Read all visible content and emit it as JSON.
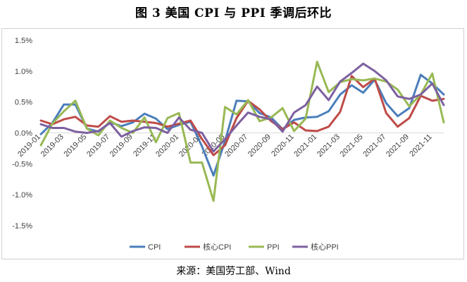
{
  "figure": {
    "title": "图 3 美国 CPI 与 PPI 季调后环比",
    "source": "来源：美国劳工部、Wind"
  },
  "chart_data": {
    "type": "line",
    "title": "图 3 美国 CPI 与 PPI 季调后环比",
    "xlabel": "",
    "ylabel": "",
    "ylim": [
      -1.5,
      1.5
    ],
    "y_ticks": [
      "1.5%",
      "1.0%",
      "0.5%",
      "0.0%",
      "-0.5%",
      "-1.0%",
      "-1.5%"
    ],
    "y_tick_values": [
      1.5,
      1.0,
      0.5,
      0.0,
      -0.5,
      -1.0,
      -1.5
    ],
    "grid": false,
    "legend": "bottom",
    "x": [
      "2019-01",
      "2019-02",
      "2019-03",
      "2019-04",
      "2019-05",
      "2019-06",
      "2019-07",
      "2019-08",
      "2019-09",
      "2019-10",
      "2019-11",
      "2019-12",
      "2020-01",
      "2020-02",
      "2020-03",
      "2020-04",
      "2020-05",
      "2020-06",
      "2020-07",
      "2020-08",
      "2020-09",
      "2020-10",
      "2020-11",
      "2020-12",
      "2021-01",
      "2021-02",
      "2021-03",
      "2021-04",
      "2021-05",
      "2021-06",
      "2021-07",
      "2021-08",
      "2021-09",
      "2021-10",
      "2021-11",
      "2021-12"
    ],
    "x_tick_labels": [
      "2019-01",
      "2019-03",
      "2019-05",
      "2019-07",
      "2019-09",
      "2019-11",
      "2020-01",
      "2020-03",
      "2020-05",
      "2020-07",
      "2020-09",
      "2020-11",
      "2021-01",
      "2021-03",
      "2021-05",
      "2021-07",
      "2021-09",
      "2021-11"
    ],
    "series": [
      {
        "name": "CPI",
        "color": "#4a7ebb",
        "values": [
          -0.02,
          0.16,
          0.46,
          0.46,
          0.07,
          0.02,
          0.17,
          0.11,
          0.17,
          0.31,
          0.23,
          0.06,
          0.13,
          0.18,
          -0.22,
          -0.69,
          -0.13,
          0.52,
          0.51,
          0.32,
          0.25,
          0.06,
          0.21,
          0.25,
          0.26,
          0.35,
          0.62,
          0.77,
          0.65,
          0.86,
          0.48,
          0.27,
          0.4,
          0.94,
          0.8,
          0.62
        ]
      },
      {
        "name": "核心CPI",
        "color": "#be4b48",
        "values": [
          0.2,
          0.14,
          0.22,
          0.26,
          0.12,
          0.1,
          0.27,
          0.18,
          0.2,
          0.18,
          0.16,
          0.1,
          0.15,
          0.2,
          -0.1,
          -0.36,
          -0.2,
          0.24,
          0.52,
          0.38,
          0.19,
          0.06,
          0.17,
          0.04,
          0.03,
          0.1,
          0.34,
          0.92,
          0.74,
          0.88,
          0.32,
          0.1,
          0.24,
          0.6,
          0.52,
          0.55
        ]
      },
      {
        "name": "PPI",
        "color": "#98b954",
        "values": [
          -0.2,
          0.15,
          0.35,
          0.52,
          0.07,
          -0.04,
          0.2,
          0.08,
          0.0,
          0.25,
          -0.15,
          0.24,
          0.32,
          -0.48,
          -0.48,
          -1.1,
          0.42,
          0.3,
          0.53,
          0.19,
          0.25,
          0.4,
          0.03,
          0.23,
          1.15,
          0.66,
          0.82,
          0.87,
          0.85,
          0.88,
          0.83,
          0.7,
          0.43,
          0.62,
          0.96,
          0.17
        ]
      },
      {
        "name": "核心PPI",
        "color": "#7d60a0",
        "values": [
          0.14,
          0.08,
          0.08,
          0.02,
          0.0,
          0.03,
          0.16,
          -0.06,
          0.03,
          0.09,
          0.08,
          0.0,
          0.25,
          0.05,
          0.0,
          -0.3,
          -0.1,
          0.12,
          0.33,
          0.26,
          0.22,
          0.02,
          0.33,
          0.45,
          0.75,
          0.53,
          0.83,
          0.97,
          1.12,
          1.0,
          0.85,
          0.59,
          0.55,
          0.62,
          0.8,
          0.45
        ]
      }
    ]
  }
}
